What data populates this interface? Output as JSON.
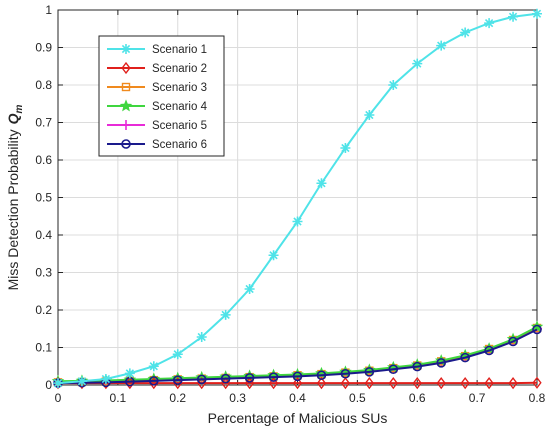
{
  "chart_data": {
    "type": "line",
    "title": "",
    "xlabel": "Percentage of Malicious SUs",
    "ylabel": "Miss Detection Probability",
    "ylabel_symbol": "Q",
    "ylabel_subscript": "m",
    "xlim": [
      0,
      0.8
    ],
    "ylim": [
      0,
      1
    ],
    "x_ticks": [
      "0",
      "0.1",
      "0.2",
      "0.3",
      "0.4",
      "0.5",
      "0.6",
      "0.7",
      "0.8"
    ],
    "y_ticks": [
      "0",
      "0.1",
      "0.2",
      "0.3",
      "0.4",
      "0.5",
      "0.6",
      "0.7",
      "0.8",
      "0.9",
      "1"
    ],
    "grid": true,
    "legend_position": "top-left",
    "x": [
      0,
      0.04,
      0.08,
      0.12,
      0.16,
      0.2,
      0.24,
      0.28,
      0.32,
      0.36,
      0.4,
      0.44,
      0.48,
      0.52,
      0.56,
      0.6,
      0.64,
      0.68,
      0.72,
      0.76,
      0.8
    ],
    "series": [
      {
        "name": "Scenario 1",
        "color": "#4fe3e8",
        "marker": "asterisk",
        "values": [
          0.005,
          0.01,
          0.016,
          0.031,
          0.05,
          0.082,
          0.128,
          0.187,
          0.256,
          0.346,
          0.436,
          0.538,
          0.632,
          0.72,
          0.8,
          0.857,
          0.905,
          0.94,
          0.965,
          0.982,
          0.99
        ]
      },
      {
        "name": "Scenario 2",
        "color": "#e0201c",
        "marker": "diamond",
        "values": [
          0.005,
          0.005,
          0.005,
          0.005,
          0.005,
          0.005,
          0.005,
          0.005,
          0.005,
          0.005,
          0.005,
          0.005,
          0.005,
          0.005,
          0.005,
          0.005,
          0.005,
          0.005,
          0.005,
          0.005,
          0.006
        ]
      },
      {
        "name": "Scenario 3",
        "color": "#f08a1e",
        "marker": "square",
        "values": [
          0.007,
          0.008,
          0.009,
          0.011,
          0.013,
          0.015,
          0.017,
          0.019,
          0.021,
          0.023,
          0.026,
          0.029,
          0.033,
          0.038,
          0.045,
          0.052,
          0.063,
          0.077,
          0.096,
          0.12,
          0.152
        ]
      },
      {
        "name": "Scenario 4",
        "color": "#3fd63f",
        "marker": "star",
        "values": [
          0.01,
          0.011,
          0.012,
          0.014,
          0.016,
          0.018,
          0.02,
          0.022,
          0.024,
          0.026,
          0.028,
          0.031,
          0.035,
          0.04,
          0.047,
          0.054,
          0.065,
          0.079,
          0.097,
          0.122,
          0.155
        ]
      },
      {
        "name": "Scenario 5",
        "color": "#e82bd8",
        "marker": "plus",
        "values": [
          0.006,
          0.007,
          0.008,
          0.01,
          0.012,
          0.014,
          0.016,
          0.018,
          0.02,
          0.022,
          0.025,
          0.028,
          0.032,
          0.037,
          0.044,
          0.051,
          0.061,
          0.075,
          0.094,
          0.118,
          0.15
        ]
      },
      {
        "name": "Scenario 6",
        "color": "#1a1a8c",
        "marker": "circle",
        "values": [
          0.005,
          0.006,
          0.007,
          0.009,
          0.011,
          0.013,
          0.015,
          0.017,
          0.019,
          0.021,
          0.023,
          0.026,
          0.03,
          0.035,
          0.042,
          0.049,
          0.059,
          0.073,
          0.092,
          0.116,
          0.148
        ]
      }
    ]
  }
}
